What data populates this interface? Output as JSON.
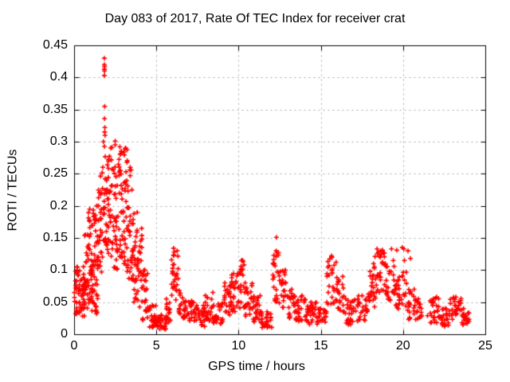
{
  "chart_data": {
    "type": "scatter",
    "title": "Day 083 of 2017, Rate Of TEC Index for receiver crat",
    "xlabel": "GPS time / hours",
    "ylabel": "ROTI / TECUs",
    "xlim": [
      0,
      25
    ],
    "ylim": [
      0,
      0.45
    ],
    "x_ticks": [
      "0",
      "5",
      "10",
      "15",
      "20",
      "25"
    ],
    "y_ticks": [
      "0",
      "0.05",
      "0.1",
      "0.15",
      "0.2",
      "0.25",
      "0.3",
      "0.35",
      "0.4",
      "0.45"
    ],
    "grid": true,
    "legend": "none",
    "marker": "plus",
    "marker_color": "#ff0000",
    "grid_color": "#a8a8a8",
    "axis_color": "#000000",
    "text_color": "#000000",
    "background_color": "#ffffff",
    "seed": 20170083,
    "envelope_bins": [
      {
        "t0": 0.0,
        "t1": 0.35,
        "lo": 0.03,
        "hi": 0.105,
        "n": 30
      },
      {
        "t0": 0.35,
        "t1": 0.65,
        "lo": 0.025,
        "hi": 0.085,
        "n": 24
      },
      {
        "t0": 0.55,
        "t1": 0.85,
        "lo": 0.04,
        "hi": 0.155,
        "n": 24
      },
      {
        "t0": 0.85,
        "t1": 1.15,
        "lo": 0.045,
        "hi": 0.195,
        "n": 28
      },
      {
        "t0": 1.0,
        "t1": 1.45,
        "lo": 0.03,
        "hi": 0.12,
        "n": 36
      },
      {
        "t0": 1.15,
        "t1": 1.45,
        "lo": 0.1,
        "hi": 0.2,
        "n": 18
      },
      {
        "t0": 1.45,
        "t1": 1.75,
        "lo": 0.09,
        "hi": 0.26,
        "n": 28
      },
      {
        "t0": 1.75,
        "t1": 2.05,
        "lo": 0.13,
        "hi": 0.3,
        "n": 30
      },
      {
        "t0": 2.05,
        "t1": 2.35,
        "lo": 0.12,
        "hi": 0.29,
        "n": 30
      },
      {
        "t0": 2.35,
        "t1": 2.65,
        "lo": 0.1,
        "hi": 0.295,
        "n": 30
      },
      {
        "t0": 2.65,
        "t1": 2.95,
        "lo": 0.12,
        "hi": 0.285,
        "n": 30
      },
      {
        "t0": 2.95,
        "t1": 3.25,
        "lo": 0.095,
        "hi": 0.29,
        "n": 30
      },
      {
        "t0": 3.25,
        "t1": 3.55,
        "lo": 0.07,
        "hi": 0.26,
        "n": 28
      },
      {
        "t0": 3.55,
        "t1": 3.85,
        "lo": 0.05,
        "hi": 0.19,
        "n": 26
      },
      {
        "t0": 3.85,
        "t1": 4.15,
        "lo": 0.04,
        "hi": 0.165,
        "n": 24
      },
      {
        "t0": 4.15,
        "t1": 4.5,
        "lo": 0.02,
        "hi": 0.1,
        "n": 22
      },
      {
        "t0": 4.5,
        "t1": 5.0,
        "lo": 0.01,
        "hi": 0.045,
        "n": 26
      },
      {
        "t0": 5.0,
        "t1": 5.6,
        "lo": 0.008,
        "hi": 0.03,
        "n": 28
      },
      {
        "t0": 5.6,
        "t1": 5.9,
        "lo": 0.015,
        "hi": 0.055,
        "n": 16
      },
      {
        "t0": 5.9,
        "t1": 6.35,
        "lo": 0.05,
        "hi": 0.13,
        "n": 26
      },
      {
        "t0": 6.35,
        "t1": 6.75,
        "lo": 0.025,
        "hi": 0.068,
        "n": 20
      },
      {
        "t0": 6.75,
        "t1": 7.35,
        "lo": 0.018,
        "hi": 0.052,
        "n": 26
      },
      {
        "t0": 7.35,
        "t1": 7.95,
        "lo": 0.012,
        "hi": 0.045,
        "n": 26
      },
      {
        "t0": 7.95,
        "t1": 8.45,
        "lo": 0.02,
        "hi": 0.065,
        "n": 22
      },
      {
        "t0": 8.45,
        "t1": 9.05,
        "lo": 0.015,
        "hi": 0.048,
        "n": 26
      },
      {
        "t0": 9.05,
        "t1": 9.55,
        "lo": 0.03,
        "hi": 0.08,
        "n": 24
      },
      {
        "t0": 9.55,
        "t1": 10.05,
        "lo": 0.035,
        "hi": 0.095,
        "n": 26
      },
      {
        "t0": 10.05,
        "t1": 10.35,
        "lo": 0.04,
        "hi": 0.115,
        "n": 16
      },
      {
        "t0": 10.35,
        "t1": 10.85,
        "lo": 0.028,
        "hi": 0.08,
        "n": 24
      },
      {
        "t0": 10.85,
        "t1": 11.35,
        "lo": 0.018,
        "hi": 0.06,
        "n": 24
      },
      {
        "t0": 11.35,
        "t1": 12.05,
        "lo": 0.01,
        "hi": 0.035,
        "n": 30
      },
      {
        "t0": 12.05,
        "t1": 12.45,
        "lo": 0.05,
        "hi": 0.13,
        "n": 20
      },
      {
        "t0": 12.45,
        "t1": 12.95,
        "lo": 0.04,
        "hi": 0.1,
        "n": 22
      },
      {
        "t0": 12.95,
        "t1": 13.45,
        "lo": 0.025,
        "hi": 0.07,
        "n": 24
      },
      {
        "t0": 13.45,
        "t1": 14.15,
        "lo": 0.018,
        "hi": 0.06,
        "n": 28
      },
      {
        "t0": 14.15,
        "t1": 14.75,
        "lo": 0.015,
        "hi": 0.05,
        "n": 26
      },
      {
        "t0": 14.75,
        "t1": 15.35,
        "lo": 0.013,
        "hi": 0.04,
        "n": 24
      },
      {
        "t0": 15.35,
        "t1": 15.95,
        "lo": 0.045,
        "hi": 0.12,
        "n": 26
      },
      {
        "t0": 15.95,
        "t1": 16.45,
        "lo": 0.035,
        "hi": 0.09,
        "n": 22
      },
      {
        "t0": 16.45,
        "t1": 17.15,
        "lo": 0.015,
        "hi": 0.055,
        "n": 26
      },
      {
        "t0": 17.15,
        "t1": 17.85,
        "lo": 0.02,
        "hi": 0.06,
        "n": 26
      },
      {
        "t0": 17.85,
        "t1": 18.35,
        "lo": 0.04,
        "hi": 0.11,
        "n": 24
      },
      {
        "t0": 18.35,
        "t1": 18.95,
        "lo": 0.065,
        "hi": 0.13,
        "n": 26
      },
      {
        "t0": 18.95,
        "t1": 19.55,
        "lo": 0.05,
        "hi": 0.115,
        "n": 26
      },
      {
        "t0": 19.55,
        "t1": 20.25,
        "lo": 0.04,
        "hi": 0.115,
        "n": 30
      },
      {
        "t0": 20.25,
        "t1": 20.75,
        "lo": 0.02,
        "hi": 0.07,
        "n": 20
      },
      {
        "t0": 20.75,
        "t1": 21.15,
        "lo": 0.022,
        "hi": 0.055,
        "n": 16
      },
      {
        "t0": 21.45,
        "t1": 22.25,
        "lo": 0.018,
        "hi": 0.058,
        "n": 28
      },
      {
        "t0": 22.25,
        "t1": 22.85,
        "lo": 0.012,
        "hi": 0.04,
        "n": 24
      },
      {
        "t0": 22.85,
        "t1": 23.55,
        "lo": 0.022,
        "hi": 0.058,
        "n": 26
      },
      {
        "t0": 23.55,
        "t1": 24.05,
        "lo": 0.014,
        "hi": 0.04,
        "n": 22
      }
    ],
    "outlier_points": [
      [
        1.84,
        0.43
      ],
      [
        1.84,
        0.42
      ],
      [
        1.85,
        0.417
      ],
      [
        1.84,
        0.413
      ],
      [
        1.85,
        0.41
      ],
      [
        1.84,
        0.403
      ],
      [
        1.86,
        0.355
      ],
      [
        1.85,
        0.336
      ],
      [
        1.87,
        0.322
      ],
      [
        1.86,
        0.315
      ],
      [
        1.88,
        0.31
      ],
      [
        2.5,
        0.301
      ],
      [
        2.3,
        0.291
      ],
      [
        2.78,
        0.292
      ],
      [
        3.1,
        0.289
      ],
      [
        6.05,
        0.134
      ],
      [
        6.08,
        0.128
      ],
      [
        10.18,
        0.115
      ],
      [
        12.3,
        0.151
      ],
      [
        12.32,
        0.127
      ],
      [
        12.28,
        0.121
      ],
      [
        15.65,
        0.122
      ],
      [
        18.3,
        0.121
      ],
      [
        18.42,
        0.133
      ],
      [
        18.75,
        0.131
      ],
      [
        19.3,
        0.133
      ],
      [
        19.62,
        0.131
      ],
      [
        19.95,
        0.135
      ],
      [
        20.05,
        0.133
      ],
      [
        20.3,
        0.13
      ],
      [
        20.45,
        0.118
      ]
    ]
  }
}
